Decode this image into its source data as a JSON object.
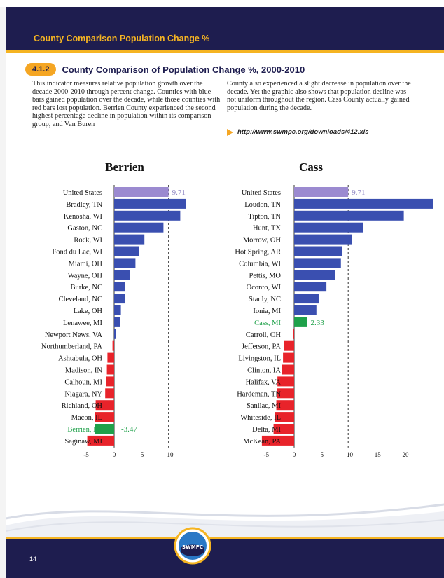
{
  "header": {
    "title": "County Comparison Population Change %"
  },
  "section": {
    "number": "4.1.2",
    "title": "County Comparison of Population Change %, 2000-2010"
  },
  "text": {
    "para1": "This indicator measures relative population growth over the decade 2000-2010 through percent change. Counties with blue bars gained population over the decade, while those counties with red bars lost population. Berrien County experienced the second highest percentage decline in population within its comparison group, and Van Buren",
    "para2": "County also experienced a slight decrease in population over the decade. Yet the graphic also shows that population decline was not uniform throughout the region. Cass County actually gained population during the decade.",
    "link": "http://www.swmpc.org/downloads/412.xls"
  },
  "footer": {
    "page": "14",
    "logo_text": "SWMPC"
  },
  "colors": {
    "gain": "#3a4fb0",
    "loss": "#e8232a",
    "us": "#9b8ad0",
    "highlight": "#1fa14a",
    "us_label": "#8f86c4",
    "navy": "#1e1d4f",
    "gold": "#f5b422"
  },
  "chart_data": [
    {
      "type": "bar",
      "orientation": "horizontal",
      "title": "Berrien",
      "categories": [
        "United States",
        "Bradley, TN",
        "Kenosha, WI",
        "Gaston, NC",
        "Rock, WI",
        "Fond du Lac, WI",
        "Miami, OH",
        "Wayne, OH",
        "Burke, NC",
        "Cleveland, NC",
        "Lake, OH",
        "Lenawee, MI",
        "Newport News, VA",
        "Northumberland, PA",
        "Ashtabula, OH",
        "Madison, IN",
        "Calhoun, MI",
        "Niagara, NY",
        "Richland, OH",
        "Macon, IL",
        "Berrien, MI",
        "Saginaw, MI"
      ],
      "values": [
        9.71,
        12.8,
        11.8,
        8.8,
        5.4,
        4.5,
        3.8,
        2.8,
        2.0,
        2.0,
        1.2,
        1.0,
        0.3,
        -0.3,
        -1.2,
        -1.3,
        -1.5,
        -1.6,
        -3.3,
        -3.4,
        -3.47,
        -4.8
      ],
      "highlight": "Berrien, MI",
      "data_labels": {
        "United States": "9.71",
        "Berrien, MI": "-3.47"
      },
      "reference_line": 9.71,
      "xticks": [
        -5,
        0,
        5,
        10
      ],
      "xlim": [
        -5.5,
        13.2
      ]
    },
    {
      "type": "bar",
      "orientation": "horizontal",
      "title": "Cass",
      "categories": [
        "United States",
        "Loudon, TN",
        "Tipton, TN",
        "Hunt, TX",
        "Morrow, OH",
        "Hot Spring, AR",
        "Columbia, WI",
        "Pettis, MO",
        "Oconto, WI",
        "Stanly, NC",
        "Ionia, MI",
        "Cass, MI",
        "Carroll, OH",
        "Jefferson, PA",
        "Livingston, IL",
        "Clinton, IA",
        "Halifax, VA",
        "Hardeman, TN",
        "Sanilac, MI",
        "Whiteside, IL",
        "Delta, MI",
        "McKean, PA"
      ],
      "values": [
        9.71,
        25.0,
        19.7,
        12.4,
        10.4,
        8.6,
        8.4,
        7.4,
        5.8,
        4.4,
        4.0,
        2.33,
        -0.2,
        -1.8,
        -2.0,
        -2.2,
        -3.0,
        -3.1,
        -3.2,
        -3.5,
        -3.7,
        -5.8
      ],
      "highlight": "Cass, MI",
      "data_labels": {
        "United States": "9.71",
        "Cass, MI": "2.33"
      },
      "reference_line": 9.71,
      "xticks": [
        -5,
        0,
        5,
        10,
        15,
        20
      ],
      "xlim": [
        -6,
        25
      ]
    }
  ]
}
